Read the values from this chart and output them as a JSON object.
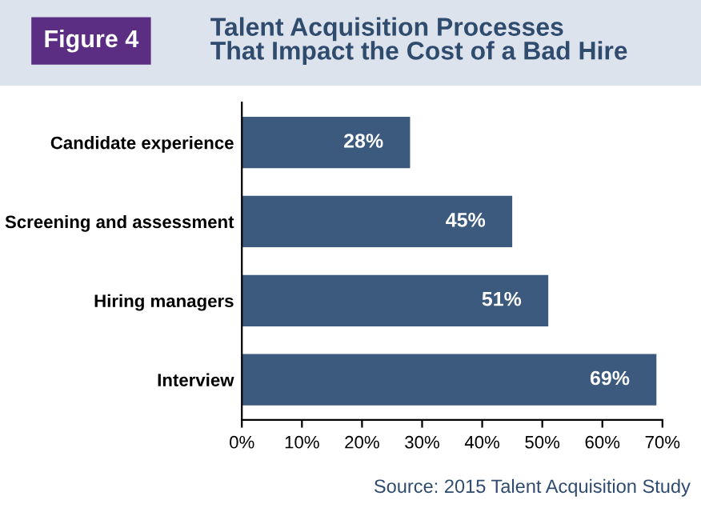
{
  "chart_data": {
    "type": "bar",
    "orientation": "horizontal",
    "title": "Talent Acquisition Processes\nThat Impact the Cost of a Bad Hire",
    "annotations": [
      "Figure 4",
      "Source: 2015 Talent Acquisition Study"
    ],
    "categories": [
      "Candidate experience",
      "Screening and assessment",
      "Hiring managers",
      "Interview"
    ],
    "values": [
      28,
      45,
      51,
      69
    ],
    "value_labels": [
      "28%",
      "45%",
      "51%",
      "69%"
    ],
    "color": "#3b5a7d",
    "xlim": [
      0,
      70
    ],
    "xticks": [
      {
        "value": 0,
        "label": "0%"
      },
      {
        "value": 10,
        "label": "10%"
      },
      {
        "value": 20,
        "label": "20%"
      },
      {
        "value": 30,
        "label": "30%"
      },
      {
        "value": 40,
        "label": "40%"
      },
      {
        "value": 50,
        "label": "50%"
      },
      {
        "value": 60,
        "label": "60%"
      },
      {
        "value": 70,
        "label": "70%"
      }
    ],
    "grid": false,
    "legend": false
  }
}
